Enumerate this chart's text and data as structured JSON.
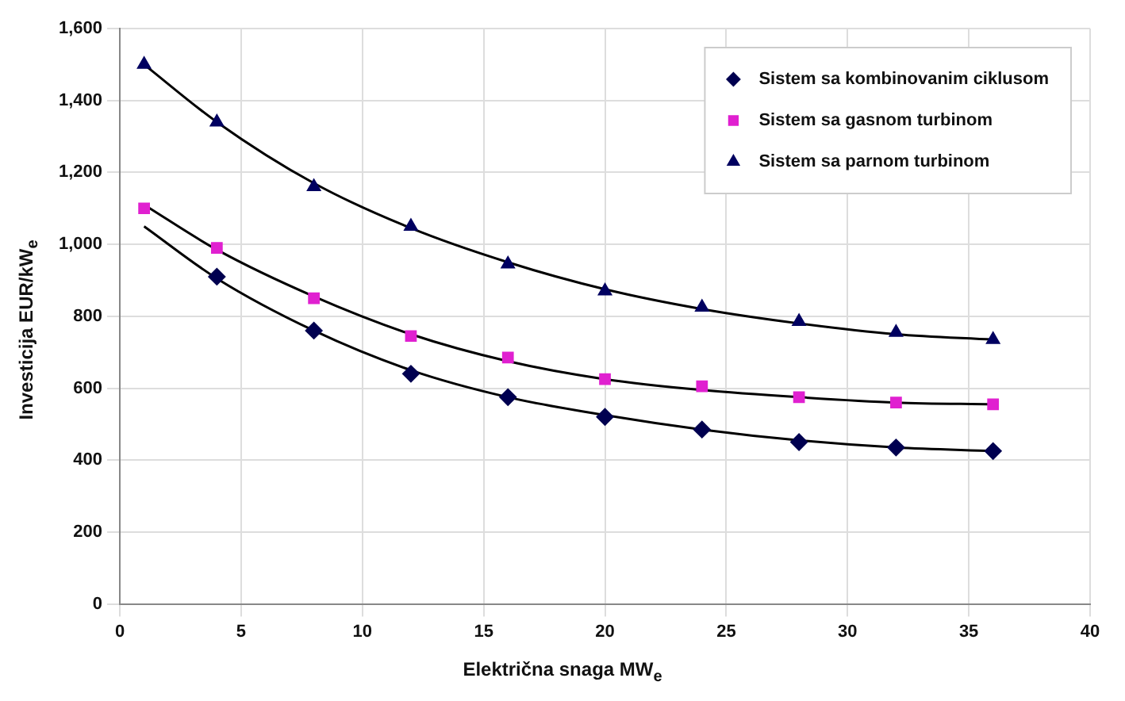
{
  "chart_data": {
    "type": "scatter",
    "xlabel": "Električna snaga MW$_{e}$",
    "ylabel": "Investicija EUR/kW$_{e}$",
    "xlim": [
      0,
      40
    ],
    "xticks": [
      0,
      5,
      10,
      15,
      20,
      25,
      30,
      35,
      40
    ],
    "ylim": [
      0,
      1600
    ],
    "yticks": [
      0,
      200,
      400,
      600,
      800,
      {
        "value": 1000,
        "label": "1,000"
      },
      {
        "value": 1200,
        "label": "1,200"
      },
      {
        "value": 1400,
        "label": "1,400"
      },
      {
        "value": 1600,
        "label": "1,600"
      }
    ],
    "grid": true,
    "legend": "top right",
    "x": [
      1,
      4,
      8,
      12,
      16,
      20,
      24,
      28,
      32,
      36
    ],
    "series": [
      {
        "name": "Sistem sa kombinovanim ciklusom",
        "color": "#000050",
        "marker": "diamond",
        "values": [
          null,
          910,
          760,
          640,
          575,
          520,
          485,
          450,
          435,
          425
        ]
      },
      {
        "name": "Sistem sa gasnom turbinom",
        "color": "#e020d0",
        "marker": "square",
        "values": [
          1100,
          990,
          850,
          745,
          685,
          625,
          605,
          575,
          560,
          555
        ]
      },
      {
        "name": "Sistem sa parnom turbinom",
        "color": "#000060",
        "marker": "triangle",
        "values": [
          1500,
          1340,
          1160,
          1050,
          945,
          870,
          825,
          785,
          755,
          735
        ]
      },
      {
        "type": "line",
        "color": "#000000",
        "marker": "none",
        "x": [
          1,
          4,
          8,
          12,
          16,
          20,
          24,
          28,
          32,
          36
        ],
        "values": [
          1050,
          905,
          760,
          650,
          575,
          525,
          485,
          455,
          435,
          425
        ]
      },
      {
        "type": "line",
        "color": "#000000",
        "marker": "none",
        "x": [
          1,
          4,
          8,
          12,
          16,
          20,
          24,
          28,
          32,
          36
        ],
        "values": [
          1110,
          985,
          855,
          750,
          675,
          625,
          595,
          575,
          560,
          555
        ]
      },
      {
        "type": "line",
        "color": "#000000",
        "marker": "none",
        "x": [
          1,
          4,
          8,
          12,
          16,
          20,
          24,
          28,
          32,
          36
        ],
        "values": [
          1500,
          1340,
          1170,
          1045,
          950,
          875,
          820,
          780,
          750,
          735
        ]
      }
    ]
  }
}
